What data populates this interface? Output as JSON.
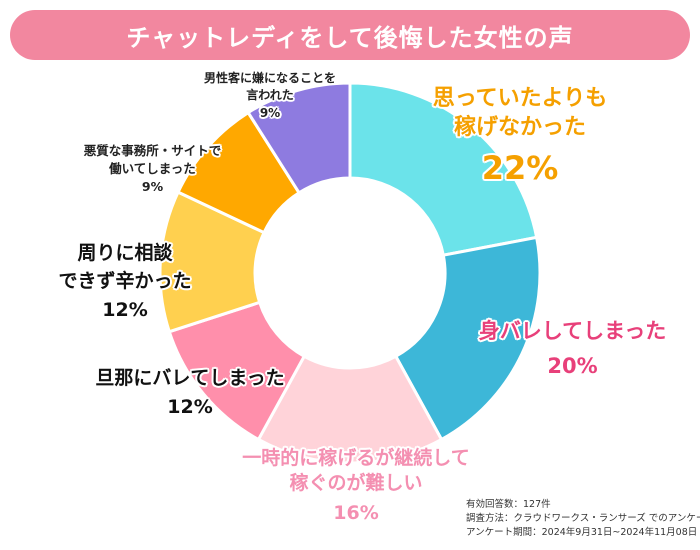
{
  "title": "チャットレディをして後悔した女性の声",
  "chart_data": {
    "type": "pie",
    "donut": true,
    "start": "top",
    "direction": "clockwise",
    "slices": [
      {
        "label": [
          "思っていたよりも",
          "稼げなかった"
        ],
        "value": 22,
        "percent_label": "22%",
        "color": "#6be3ea",
        "text_color": "#f5a000"
      },
      {
        "label": [
          "身バレしてしまった"
        ],
        "value": 20,
        "percent_label": "20%",
        "color": "#3db7d8",
        "text_color": "#e8407a"
      },
      {
        "label": [
          "一時的に稼げるが継続して",
          "稼ぐのが難しい"
        ],
        "value": 16,
        "percent_label": "16%",
        "color": "#ffd3d9",
        "text_color": "#f48fb1"
      },
      {
        "label": [
          "旦那にバレてしまった"
        ],
        "value": 12,
        "percent_label": "12%",
        "color": "#ff8fab",
        "text_color": "#111111"
      },
      {
        "label": [
          "周りに相談",
          "できず辛かった"
        ],
        "value": 12,
        "percent_label": "12%",
        "color": "#ffd04f",
        "text_color": "#111111"
      },
      {
        "label": [
          "悪質な事務所・サイトで",
          "働いてしまった"
        ],
        "value": 9,
        "percent_label": "9%",
        "color": "#ffa800",
        "text_color": "#222222"
      },
      {
        "label": [
          "男性客に嫌になることを",
          "言われた"
        ],
        "value": 9,
        "percent_label": "9%",
        "color": "#8e7be0",
        "text_color": "#222222"
      }
    ]
  },
  "footnote": {
    "respondents": "有効回答数：127件",
    "method": "調査方法：クラウドワークス・ランサーズ でのアンケート",
    "period": "アンケート期間：2024年9月31日~2024年11月08日"
  }
}
